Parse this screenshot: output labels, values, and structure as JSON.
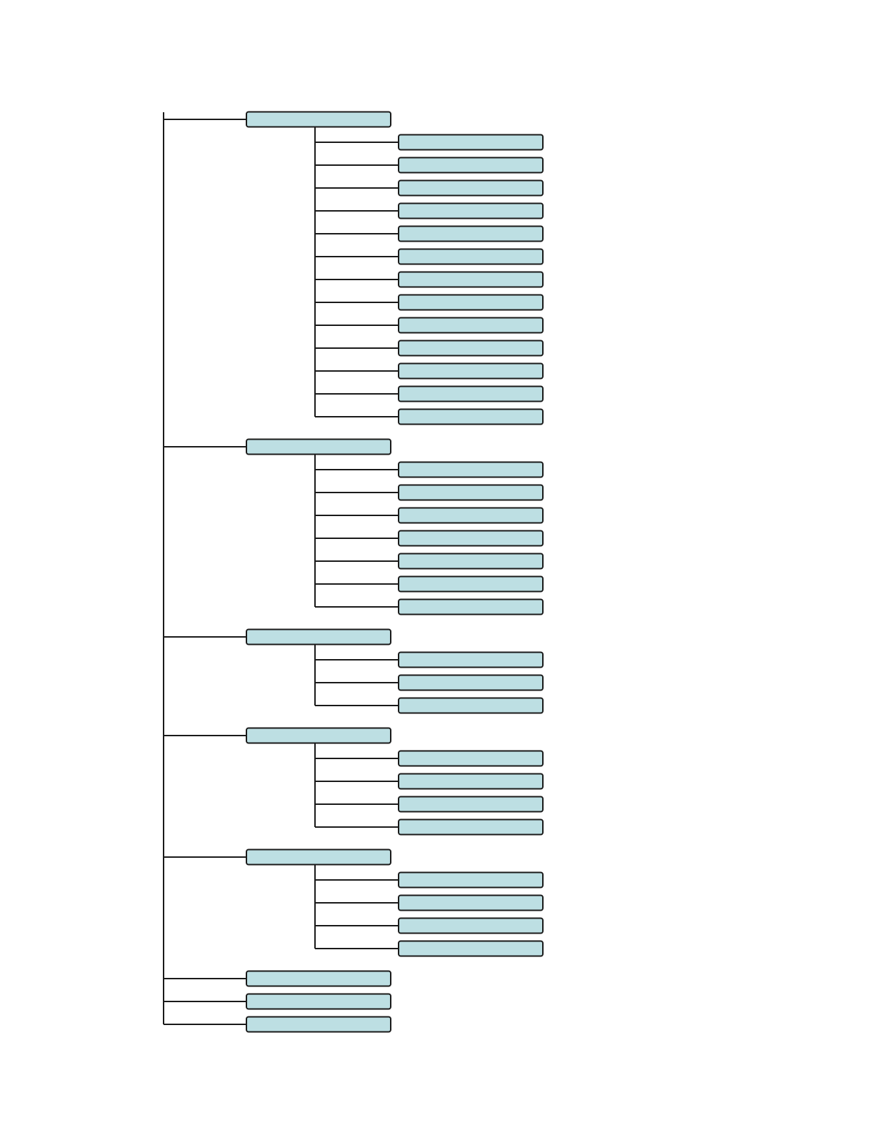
{
  "diagram": {
    "type": "tree",
    "node_fill": "#bddfe3",
    "node_stroke": "#1a1a1a",
    "line_color": "#1a1a1a",
    "groups": [
      {
        "label": "",
        "children": [
          {
            "label": ""
          },
          {
            "label": ""
          },
          {
            "label": ""
          },
          {
            "label": ""
          },
          {
            "label": ""
          },
          {
            "label": ""
          },
          {
            "label": ""
          },
          {
            "label": ""
          },
          {
            "label": ""
          },
          {
            "label": ""
          },
          {
            "label": ""
          },
          {
            "label": ""
          },
          {
            "label": ""
          }
        ]
      },
      {
        "label": "",
        "children": [
          {
            "label": ""
          },
          {
            "label": ""
          },
          {
            "label": ""
          },
          {
            "label": ""
          },
          {
            "label": ""
          },
          {
            "label": ""
          },
          {
            "label": ""
          }
        ]
      },
      {
        "label": "",
        "children": [
          {
            "label": ""
          },
          {
            "label": ""
          },
          {
            "label": ""
          }
        ]
      },
      {
        "label": "",
        "children": [
          {
            "label": ""
          },
          {
            "label": ""
          },
          {
            "label": ""
          },
          {
            "label": ""
          }
        ]
      },
      {
        "label": "",
        "children": [
          {
            "label": ""
          },
          {
            "label": ""
          },
          {
            "label": ""
          },
          {
            "label": ""
          }
        ]
      },
      {
        "label": "",
        "children": []
      },
      {
        "label": "",
        "children": []
      },
      {
        "label": "",
        "children": []
      }
    ]
  }
}
